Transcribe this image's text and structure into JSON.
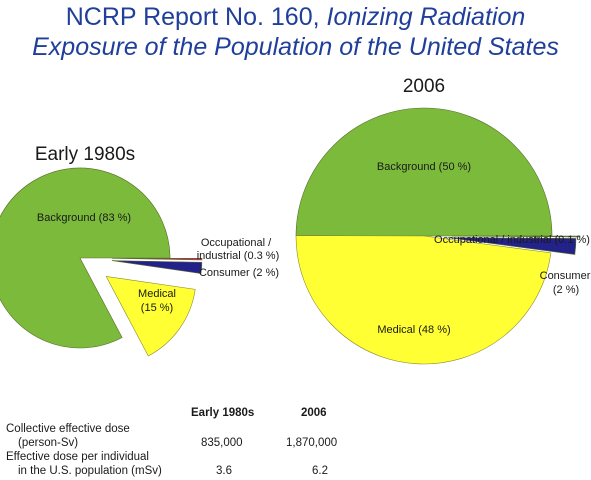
{
  "title_line1": "NCRP Report No. 160, ",
  "title_line1_italic": "Ionizing Radiation",
  "title_line2": "Exposure of the Population of the United States",
  "colors": {
    "title": "#1f3f9a",
    "background": "#7cba3c",
    "medical": "#ffff33",
    "occupational": "#cc2266",
    "consumer": "#22228a",
    "outline": "#5a6a2a"
  },
  "chart_data": [
    {
      "type": "pie",
      "title": "Early 1980s",
      "slices": [
        {
          "label": "Background (83 %)",
          "value": 83
        },
        {
          "label": "Occupational / industrial (0.3 %)",
          "value": 0.3
        },
        {
          "label": "Consumer (2 %)",
          "value": 2
        },
        {
          "label": "Medical (15 %)",
          "value": 15
        }
      ]
    },
    {
      "type": "pie",
      "title": "2006",
      "slices": [
        {
          "label": "Background (50 %)",
          "value": 50
        },
        {
          "label": "Occupational / industrial (0.1 %)",
          "value": 0.1
        },
        {
          "label": "Consumer (2 %)",
          "value": 2
        },
        {
          "label": "Medical (48 %)",
          "value": 48
        }
      ]
    }
  ],
  "labels": {
    "pie1_background": "Background (83 %)",
    "pie1_occ_line1": "Occupational /",
    "pie1_occ_line2": "industrial (0.3 %)",
    "pie1_consumer": "Consumer (2 %)",
    "pie1_medical_line1": "Medical",
    "pie1_medical_line2": "(15 %)",
    "pie2_background": "Background (50 %)",
    "pie2_occ": "Occupational / industrial (0.1 %)",
    "pie2_consumer_line1": "Consumer",
    "pie2_consumer_line2": "(2 %)",
    "pie2_medical": "Medical (48 %)"
  },
  "table": {
    "col1_header": "Early 1980s",
    "col2_header": "2006",
    "rows": [
      {
        "label_line1": "Collective effective dose",
        "label_line2": "(person-Sv)",
        "v1": "835,000",
        "v2": "1,870,000"
      },
      {
        "label_line1": "Effective dose per individual",
        "label_line2": "in the U.S. population (mSv)",
        "v1": "3.6",
        "v2": "6.2"
      }
    ]
  }
}
